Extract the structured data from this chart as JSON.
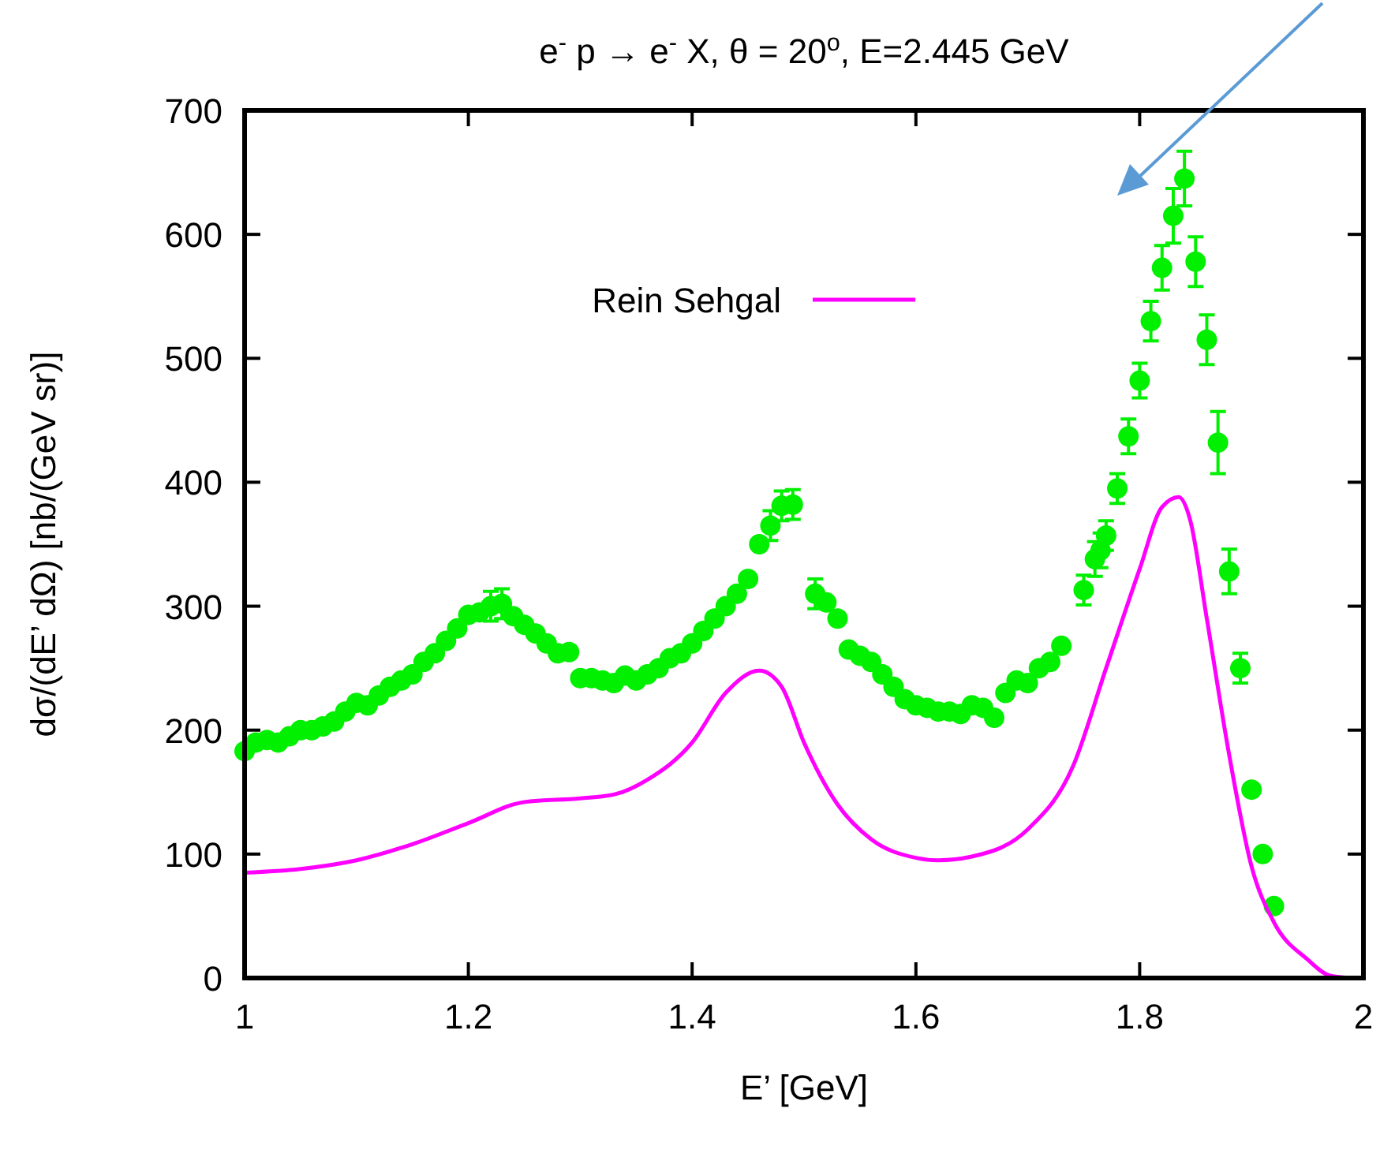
{
  "chart_data": {
    "type": "scatter",
    "title": "e$^{-}$ p → e$^{-}$ X, θ = 20$^{o}$, E=2.445 GeV",
    "xlabel": "E’ [GeV]",
    "ylabel": "dσ/(dE’ dΩ) [nb/(GeV sr)]",
    "xlim": [
      1,
      2
    ],
    "xticks": [
      1,
      1.2,
      1.4,
      1.6,
      1.8,
      2
    ],
    "ylim": [
      0,
      700
    ],
    "yticks": [
      0,
      100,
      200,
      300,
      400,
      500,
      600,
      700
    ],
    "grid": false,
    "legend": "top left",
    "series": [
      {
        "color": "#00f000",
        "marker": "circle",
        "x": [
          1.0,
          1.01,
          1.02,
          1.03,
          1.04,
          1.05,
          1.06,
          1.07,
          1.08,
          1.09,
          1.1,
          1.11,
          1.12,
          1.13,
          1.14,
          1.15,
          1.16,
          1.17,
          1.18,
          1.19,
          1.2,
          1.21,
          1.22,
          1.23,
          1.24,
          1.25,
          1.26,
          1.27,
          1.28,
          1.29,
          1.3,
          1.31,
          1.32,
          1.33,
          1.34,
          1.35,
          1.36,
          1.37,
          1.38,
          1.39,
          1.4,
          1.41,
          1.42,
          1.43,
          1.44,
          1.45,
          1.46,
          1.47,
          1.48,
          1.49,
          1.51,
          1.52,
          1.53,
          1.54,
          1.55,
          1.56,
          1.57,
          1.58,
          1.59,
          1.6,
          1.61,
          1.62,
          1.63,
          1.64,
          1.65,
          1.66,
          1.67,
          1.68,
          1.69,
          1.7,
          1.71,
          1.72,
          1.73,
          1.75,
          1.76,
          1.765,
          1.77,
          1.78,
          1.79,
          1.8,
          1.81,
          1.82,
          1.83,
          1.84,
          1.85,
          1.86,
          1.87,
          1.88,
          1.89,
          1.9,
          1.91,
          1.92
        ],
        "values": [
          183,
          190,
          192,
          190,
          195,
          200,
          200,
          203,
          207,
          215,
          222,
          220,
          228,
          235,
          240,
          245,
          255,
          262,
          272,
          282,
          293,
          295,
          300,
          302,
          292,
          285,
          278,
          270,
          262,
          263,
          242,
          242,
          240,
          238,
          244,
          240,
          245,
          250,
          258,
          262,
          270,
          280,
          290,
          300,
          310,
          322,
          350,
          365,
          381,
          382,
          310,
          303,
          290,
          265,
          260,
          255,
          245,
          235,
          225,
          220,
          218,
          215,
          215,
          213,
          220,
          218,
          210,
          230,
          240,
          238,
          250,
          255,
          268,
          313,
          338,
          345,
          357,
          395,
          437,
          482,
          530,
          573,
          615,
          645,
          578,
          515,
          432,
          328,
          250,
          152,
          100,
          58
        ],
        "errors": [
          null,
          null,
          null,
          null,
          null,
          null,
          null,
          null,
          null,
          null,
          null,
          null,
          null,
          null,
          null,
          null,
          null,
          null,
          null,
          null,
          null,
          null,
          12,
          12,
          null,
          null,
          null,
          null,
          null,
          null,
          null,
          null,
          null,
          null,
          null,
          null,
          null,
          null,
          null,
          null,
          null,
          null,
          null,
          null,
          null,
          null,
          null,
          12,
          12,
          12,
          12,
          null,
          null,
          null,
          null,
          null,
          null,
          null,
          null,
          null,
          null,
          null,
          null,
          null,
          null,
          null,
          null,
          null,
          null,
          null,
          null,
          null,
          null,
          12,
          14,
          14,
          12,
          12,
          14,
          14,
          16,
          18,
          22,
          22,
          20,
          20,
          25,
          18,
          12,
          null,
          null,
          null
        ]
      },
      {
        "type": "line",
        "name": "Rein Sehgal",
        "color": "#ff00ff",
        "marker": "none",
        "line_style": "solid",
        "x": [
          1.0,
          1.05,
          1.1,
          1.15,
          1.2,
          1.25,
          1.3,
          1.33,
          1.36,
          1.4,
          1.43,
          1.46,
          1.48,
          1.5,
          1.53,
          1.56,
          1.6,
          1.62,
          1.65,
          1.7,
          1.74,
          1.77,
          1.8,
          1.82,
          1.835,
          1.845,
          1.86,
          1.88,
          1.9,
          1.92,
          1.95,
          1.97,
          1.99
        ],
        "values": [
          85,
          88,
          95,
          108,
          125,
          142,
          145,
          148,
          160,
          190,
          230,
          248,
          235,
          190,
          140,
          112,
          97,
          95,
          98,
          120,
          170,
          250,
          330,
          380,
          388,
          370,
          290,
          180,
          90,
          45,
          15,
          2,
          0
        ]
      }
    ]
  }
}
